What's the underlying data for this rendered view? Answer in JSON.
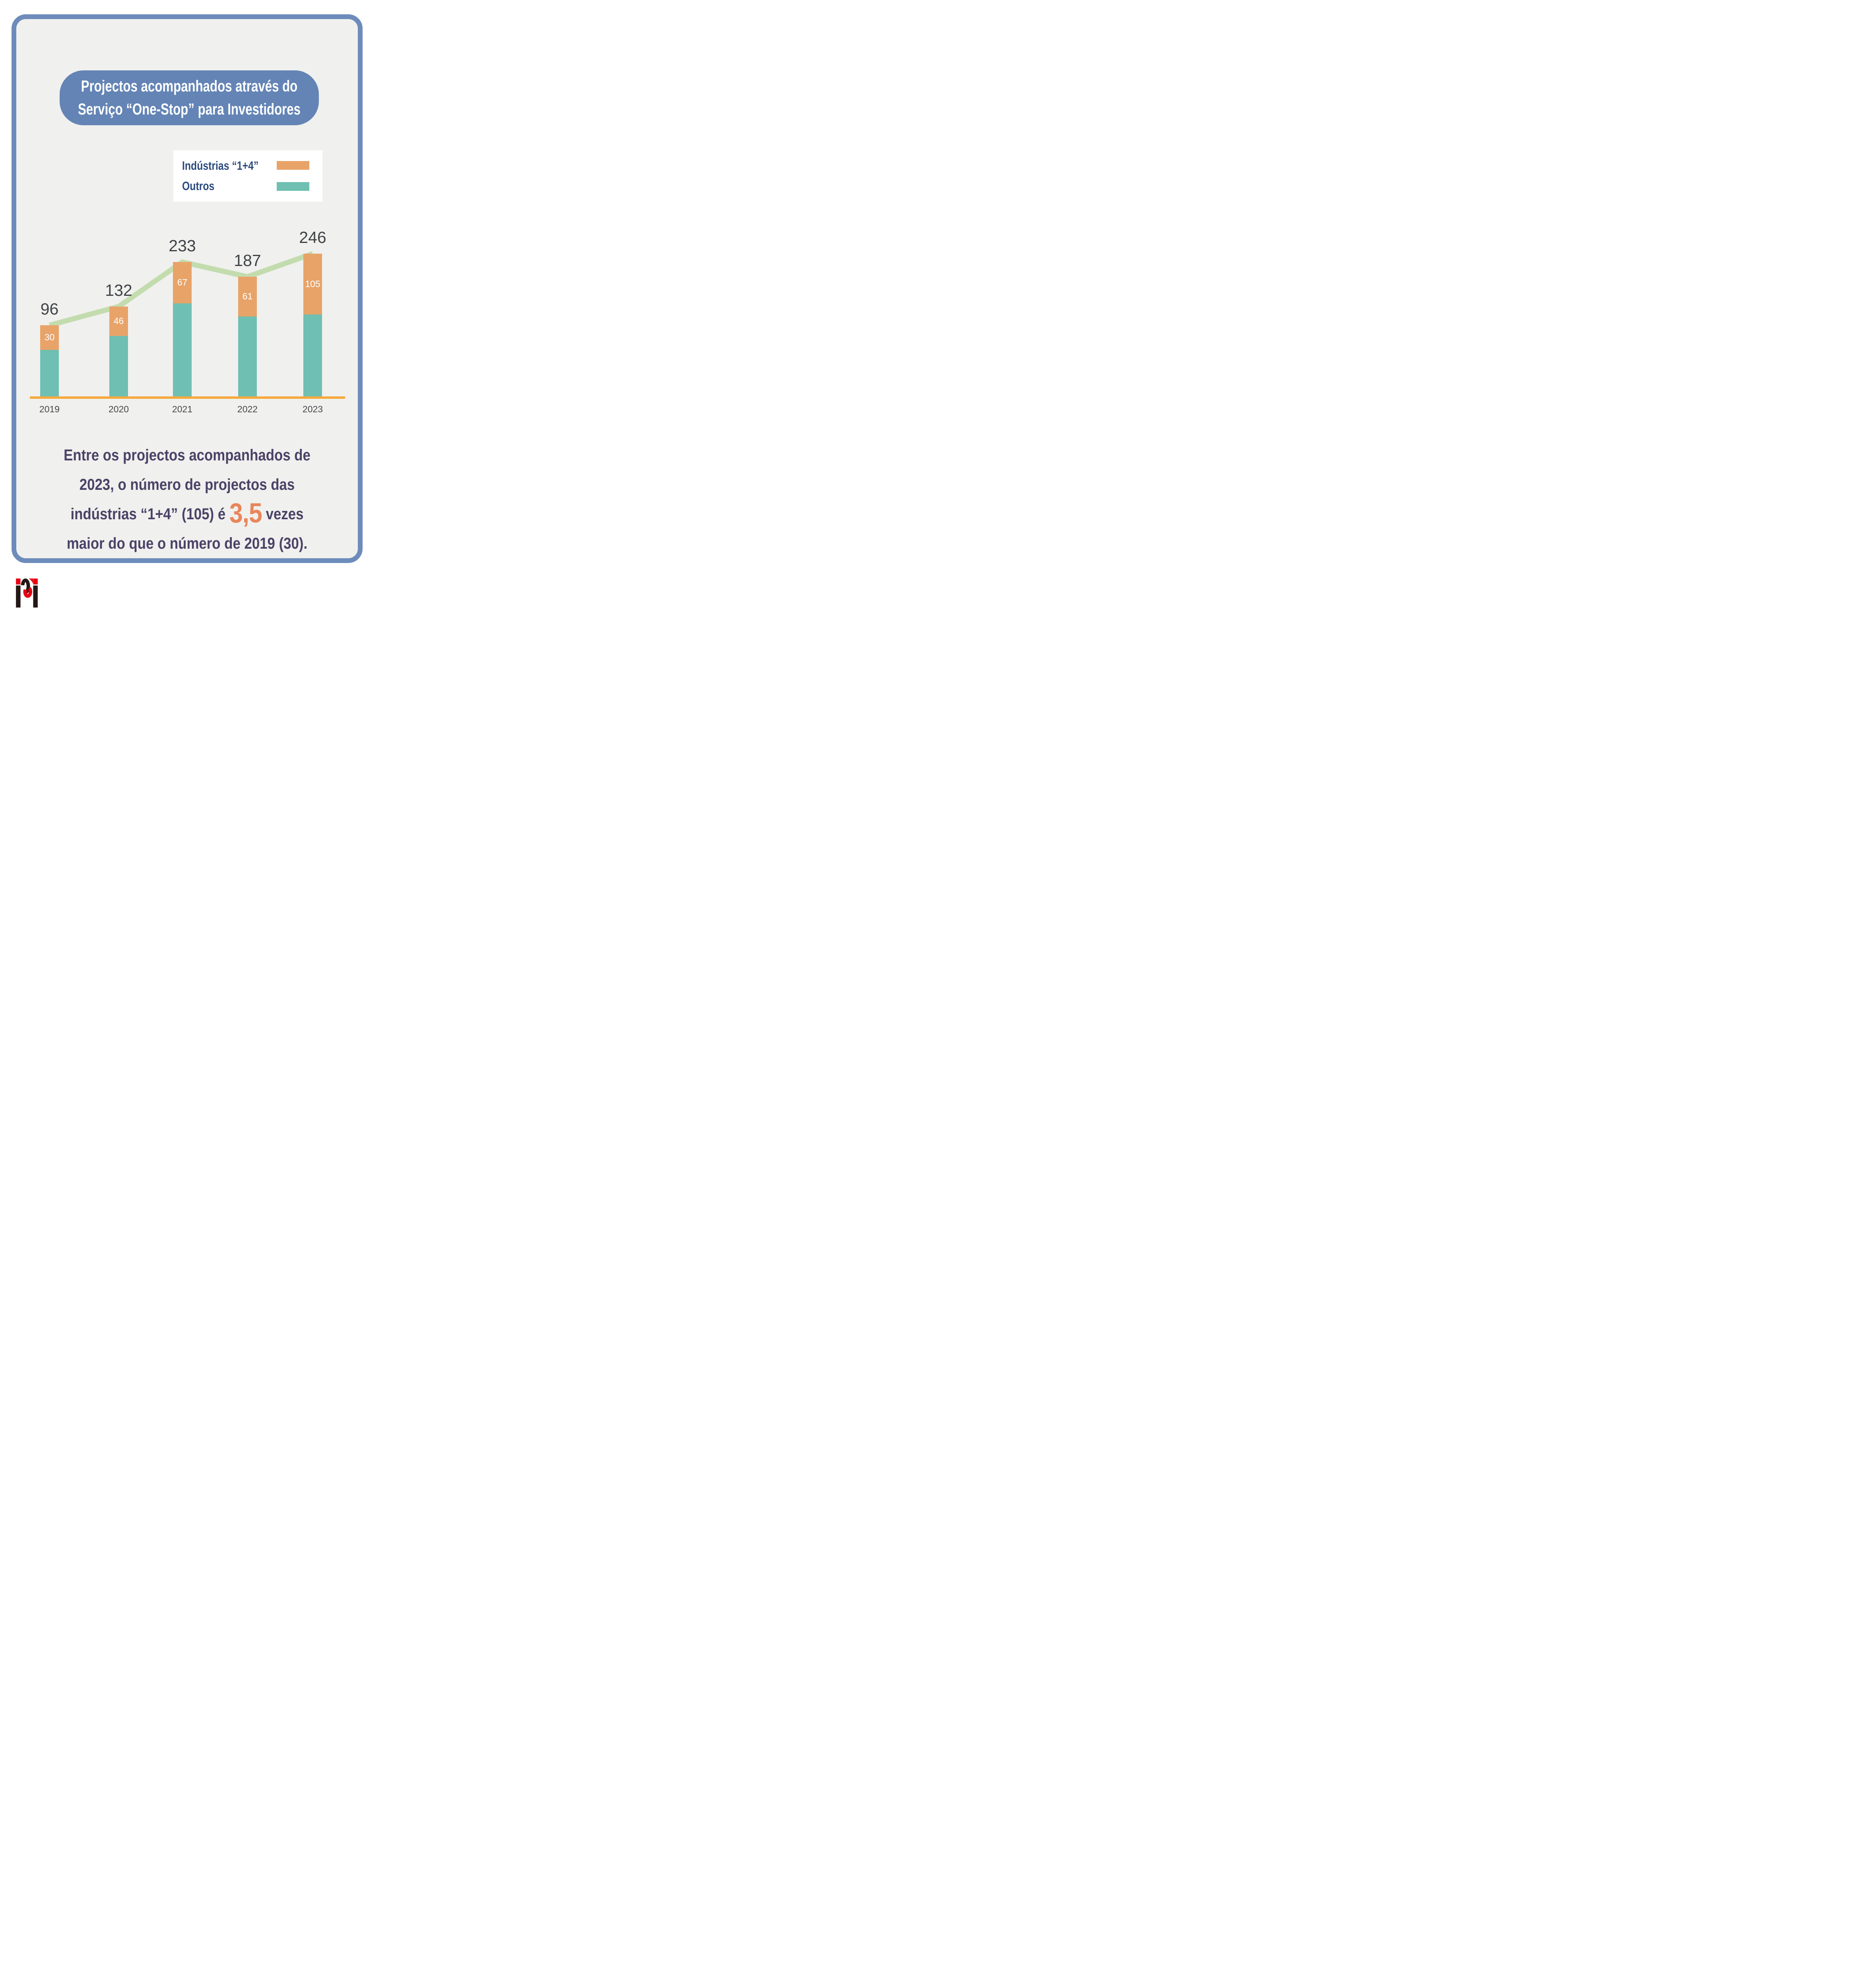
{
  "header": {
    "title_line1": "Projectos acompanhados através do",
    "title_line2": "Serviço “One-Stop” para Investidores"
  },
  "legend": {
    "items": [
      {
        "label": "Indústrias “1+4”",
        "color": "#e8a369"
      },
      {
        "label": "Outros",
        "color": "#6fbfb2"
      }
    ]
  },
  "chart_data": {
    "type": "bar",
    "stacked": true,
    "categories": [
      "2019",
      "2020",
      "2021",
      "2022",
      "2023"
    ],
    "series": [
      {
        "name": "Indústrias “1+4”",
        "color": "#e8a369",
        "values": [
          30,
          46,
          67,
          61,
          105
        ]
      },
      {
        "name": "Outros",
        "color": "#6fbfb2",
        "values": [
          66,
          86,
          166,
          126,
          141
        ]
      }
    ],
    "totals": [
      96,
      132,
      233,
      187,
      246
    ],
    "trend_line": {
      "color": "#c3dcae",
      "follows": "bar-tops"
    },
    "axis_line_color": "#f7a83d",
    "value_label_color": "#ffffff",
    "total_label_color": "#3f4346",
    "grid": false,
    "legend_position": "top-right"
  },
  "footer": {
    "line1": "Entre os projectos acompanhados de",
    "line2": "2023, o número de projectos das",
    "line3_before": "indústrias “1+4” (105) é ",
    "line3_highlight": "3,5",
    "line3_after": " vezes",
    "line4": "maior do que o número de 2019 (30).",
    "highlight_color": "#e8865a"
  },
  "branding": {
    "logo_name": "ipim-logo",
    "brand_blue": "#6384b5",
    "card_border_blue": "#6d8cbb",
    "card_background": "#f0f0ee",
    "logo_red": "#e60012",
    "logo_black": "#231815"
  }
}
